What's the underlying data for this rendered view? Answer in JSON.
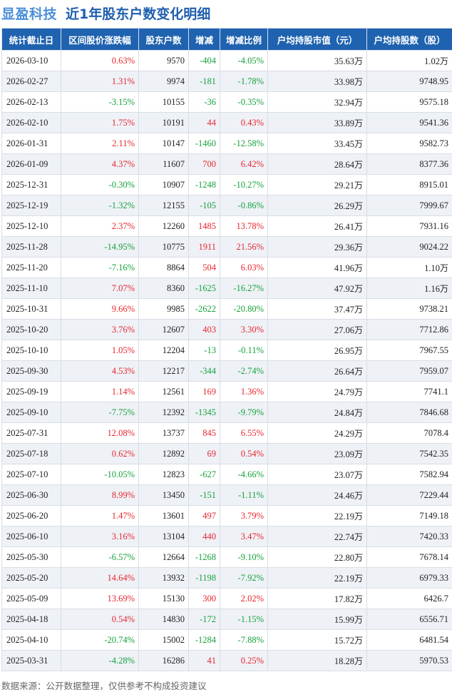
{
  "header": {
    "company": "显盈科技",
    "subtitle": "近1年股东户数变化明细"
  },
  "table": {
    "columns": [
      "统计截止日",
      "区间股价涨跌幅",
      "股东户数",
      "增减",
      "增减比例",
      "户均持股市值（元）",
      "户均持股数（股）"
    ],
    "rows": [
      {
        "date": "2026-03-10",
        "change_pct": "0.63%",
        "holders": "9570",
        "delta": "-404",
        "delta_pct": "-4.05%",
        "avg_value": "35.63",
        "avg_value_unit": "万",
        "avg_shares": "1.02",
        "avg_shares_unit": "万"
      },
      {
        "date": "2026-02-27",
        "change_pct": "1.31%",
        "holders": "9974",
        "delta": "-181",
        "delta_pct": "-1.78%",
        "avg_value": "33.98",
        "avg_value_unit": "万",
        "avg_shares": "9748.95",
        "avg_shares_unit": ""
      },
      {
        "date": "2026-02-13",
        "change_pct": "-3.15%",
        "holders": "10155",
        "delta": "-36",
        "delta_pct": "-0.35%",
        "avg_value": "32.94",
        "avg_value_unit": "万",
        "avg_shares": "9575.18",
        "avg_shares_unit": ""
      },
      {
        "date": "2026-02-10",
        "change_pct": "1.75%",
        "holders": "10191",
        "delta": "44",
        "delta_pct": "0.43%",
        "avg_value": "33.89",
        "avg_value_unit": "万",
        "avg_shares": "9541.36",
        "avg_shares_unit": ""
      },
      {
        "date": "2026-01-31",
        "change_pct": "2.11%",
        "holders": "10147",
        "delta": "-1460",
        "delta_pct": "-12.58%",
        "avg_value": "33.45",
        "avg_value_unit": "万",
        "avg_shares": "9582.73",
        "avg_shares_unit": ""
      },
      {
        "date": "2026-01-09",
        "change_pct": "4.37%",
        "holders": "11607",
        "delta": "700",
        "delta_pct": "6.42%",
        "avg_value": "28.64",
        "avg_value_unit": "万",
        "avg_shares": "8377.36",
        "avg_shares_unit": ""
      },
      {
        "date": "2025-12-31",
        "change_pct": "-0.30%",
        "holders": "10907",
        "delta": "-1248",
        "delta_pct": "-10.27%",
        "avg_value": "29.21",
        "avg_value_unit": "万",
        "avg_shares": "8915.01",
        "avg_shares_unit": ""
      },
      {
        "date": "2025-12-19",
        "change_pct": "-1.32%",
        "holders": "12155",
        "delta": "-105",
        "delta_pct": "-0.86%",
        "avg_value": "26.29",
        "avg_value_unit": "万",
        "avg_shares": "7999.67",
        "avg_shares_unit": ""
      },
      {
        "date": "2025-12-10",
        "change_pct": "2.37%",
        "holders": "12260",
        "delta": "1485",
        "delta_pct": "13.78%",
        "avg_value": "26.41",
        "avg_value_unit": "万",
        "avg_shares": "7931.16",
        "avg_shares_unit": ""
      },
      {
        "date": "2025-11-28",
        "change_pct": "-14.95%",
        "holders": "10775",
        "delta": "1911",
        "delta_pct": "21.56%",
        "avg_value": "29.36",
        "avg_value_unit": "万",
        "avg_shares": "9024.22",
        "avg_shares_unit": ""
      },
      {
        "date": "2025-11-20",
        "change_pct": "-7.16%",
        "holders": "8864",
        "delta": "504",
        "delta_pct": "6.03%",
        "avg_value": "41.96",
        "avg_value_unit": "万",
        "avg_shares": "1.10",
        "avg_shares_unit": "万"
      },
      {
        "date": "2025-11-10",
        "change_pct": "7.07%",
        "holders": "8360",
        "delta": "-1625",
        "delta_pct": "-16.27%",
        "avg_value": "47.92",
        "avg_value_unit": "万",
        "avg_shares": "1.16",
        "avg_shares_unit": "万"
      },
      {
        "date": "2025-10-31",
        "change_pct": "9.66%",
        "holders": "9985",
        "delta": "-2622",
        "delta_pct": "-20.80%",
        "avg_value": "37.47",
        "avg_value_unit": "万",
        "avg_shares": "9738.21",
        "avg_shares_unit": ""
      },
      {
        "date": "2025-10-20",
        "change_pct": "3.76%",
        "holders": "12607",
        "delta": "403",
        "delta_pct": "3.30%",
        "avg_value": "27.06",
        "avg_value_unit": "万",
        "avg_shares": "7712.86",
        "avg_shares_unit": ""
      },
      {
        "date": "2025-10-10",
        "change_pct": "1.05%",
        "holders": "12204",
        "delta": "-13",
        "delta_pct": "-0.11%",
        "avg_value": "26.95",
        "avg_value_unit": "万",
        "avg_shares": "7967.55",
        "avg_shares_unit": ""
      },
      {
        "date": "2025-09-30",
        "change_pct": "4.53%",
        "holders": "12217",
        "delta": "-344",
        "delta_pct": "-2.74%",
        "avg_value": "26.64",
        "avg_value_unit": "万",
        "avg_shares": "7959.07",
        "avg_shares_unit": ""
      },
      {
        "date": "2025-09-19",
        "change_pct": "1.14%",
        "holders": "12561",
        "delta": "169",
        "delta_pct": "1.36%",
        "avg_value": "24.79",
        "avg_value_unit": "万",
        "avg_shares": "7741.1",
        "avg_shares_unit": ""
      },
      {
        "date": "2025-09-10",
        "change_pct": "-7.75%",
        "holders": "12392",
        "delta": "-1345",
        "delta_pct": "-9.79%",
        "avg_value": "24.84",
        "avg_value_unit": "万",
        "avg_shares": "7846.68",
        "avg_shares_unit": ""
      },
      {
        "date": "2025-07-31",
        "change_pct": "12.08%",
        "holders": "13737",
        "delta": "845",
        "delta_pct": "6.55%",
        "avg_value": "24.29",
        "avg_value_unit": "万",
        "avg_shares": "7078.4",
        "avg_shares_unit": ""
      },
      {
        "date": "2025-07-18",
        "change_pct": "0.62%",
        "holders": "12892",
        "delta": "69",
        "delta_pct": "0.54%",
        "avg_value": "23.09",
        "avg_value_unit": "万",
        "avg_shares": "7542.35",
        "avg_shares_unit": ""
      },
      {
        "date": "2025-07-10",
        "change_pct": "-10.05%",
        "holders": "12823",
        "delta": "-627",
        "delta_pct": "-4.66%",
        "avg_value": "23.07",
        "avg_value_unit": "万",
        "avg_shares": "7582.94",
        "avg_shares_unit": ""
      },
      {
        "date": "2025-06-30",
        "change_pct": "8.99%",
        "holders": "13450",
        "delta": "-151",
        "delta_pct": "-1.11%",
        "avg_value": "24.46",
        "avg_value_unit": "万",
        "avg_shares": "7229.44",
        "avg_shares_unit": ""
      },
      {
        "date": "2025-06-20",
        "change_pct": "1.47%",
        "holders": "13601",
        "delta": "497",
        "delta_pct": "3.79%",
        "avg_value": "22.19",
        "avg_value_unit": "万",
        "avg_shares": "7149.18",
        "avg_shares_unit": ""
      },
      {
        "date": "2025-06-10",
        "change_pct": "3.16%",
        "holders": "13104",
        "delta": "440",
        "delta_pct": "3.47%",
        "avg_value": "22.74",
        "avg_value_unit": "万",
        "avg_shares": "7420.33",
        "avg_shares_unit": ""
      },
      {
        "date": "2025-05-30",
        "change_pct": "-6.57%",
        "holders": "12664",
        "delta": "-1268",
        "delta_pct": "-9.10%",
        "avg_value": "22.80",
        "avg_value_unit": "万",
        "avg_shares": "7678.14",
        "avg_shares_unit": ""
      },
      {
        "date": "2025-05-20",
        "change_pct": "14.64%",
        "holders": "13932",
        "delta": "-1198",
        "delta_pct": "-7.92%",
        "avg_value": "22.19",
        "avg_value_unit": "万",
        "avg_shares": "6979.33",
        "avg_shares_unit": ""
      },
      {
        "date": "2025-05-09",
        "change_pct": "13.69%",
        "holders": "15130",
        "delta": "300",
        "delta_pct": "2.02%",
        "avg_value": "17.82",
        "avg_value_unit": "万",
        "avg_shares": "6426.7",
        "avg_shares_unit": ""
      },
      {
        "date": "2025-04-18",
        "change_pct": "0.54%",
        "holders": "14830",
        "delta": "-172",
        "delta_pct": "-1.15%",
        "avg_value": "15.99",
        "avg_value_unit": "万",
        "avg_shares": "6556.71",
        "avg_shares_unit": ""
      },
      {
        "date": "2025-04-10",
        "change_pct": "-20.74%",
        "holders": "15002",
        "delta": "-1284",
        "delta_pct": "-7.88%",
        "avg_value": "15.72",
        "avg_value_unit": "万",
        "avg_shares": "6481.54",
        "avg_shares_unit": ""
      },
      {
        "date": "2025-03-31",
        "change_pct": "-4.28%",
        "holders": "16286",
        "delta": "41",
        "delta_pct": "0.25%",
        "avg_value": "18.28",
        "avg_value_unit": "万",
        "avg_shares": "5970.53",
        "avg_shares_unit": ""
      }
    ]
  },
  "footer": {
    "source": "数据来源：公开数据整理，仅供参考不构成投资建议"
  },
  "colors": {
    "header_bg": "#1f63b0",
    "up": "#e8262f",
    "down": "#17a13d",
    "company": "#4a8fd8",
    "subtitle": "#1f5fae"
  }
}
